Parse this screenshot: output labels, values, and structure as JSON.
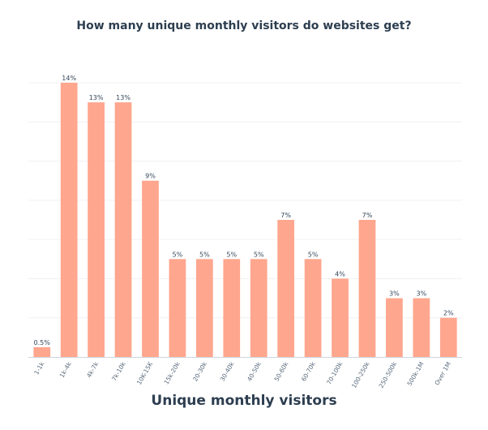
{
  "chart_data": {
    "type": "bar",
    "title": "How many unique monthly visitors do websites get?",
    "xlabel": "Unique monthly visitors",
    "ylabel": "",
    "categories": [
      "1-1k",
      "1k-4k",
      "4k-7k",
      "7k-10k",
      "10K-15K",
      "15k-20k",
      "20-30k",
      "30-40k",
      "40-50k",
      "50-60k",
      "60-70k",
      "70-100k",
      "100-250k",
      "250-500k",
      "500k-1M",
      "Over 1M"
    ],
    "values": [
      0.5,
      14,
      13,
      13,
      9,
      5,
      5,
      5,
      5,
      7,
      5,
      4,
      7,
      3,
      3,
      2
    ],
    "data_labels": [
      "0.5%",
      "14%",
      "13%",
      "13%",
      "9%",
      "5%",
      "5%",
      "5%",
      "5%",
      "7%",
      "5%",
      "4%",
      "7%",
      "3%",
      "3%",
      "2%"
    ],
    "ylim": [
      0,
      14
    ],
    "grid": true,
    "colors": {
      "bar": "#ffa68e",
      "text": "#2d3e50"
    }
  }
}
